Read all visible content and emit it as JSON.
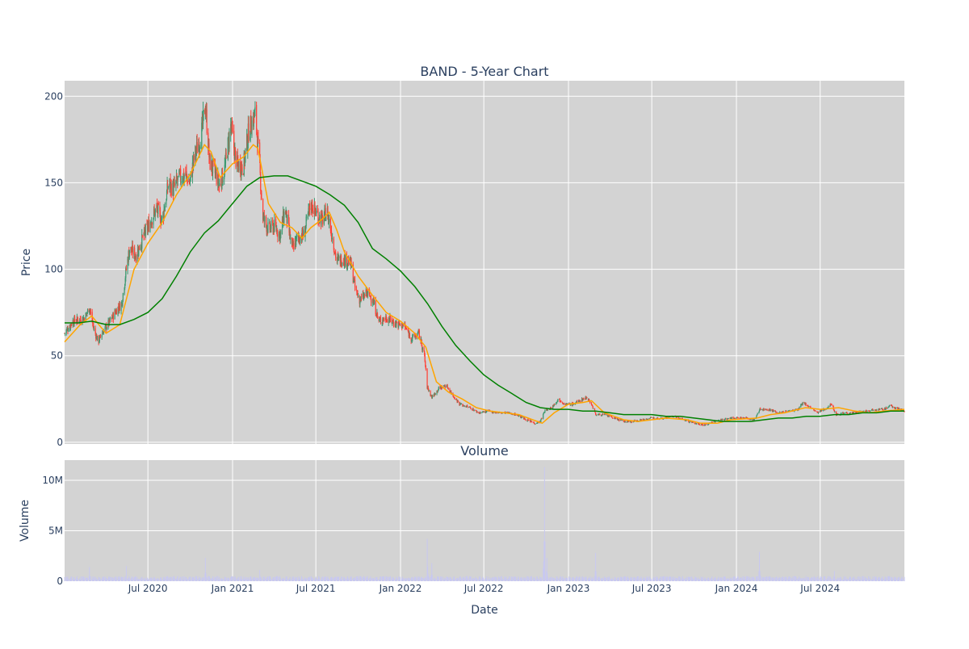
{
  "chart_data": [
    {
      "type": "candlestick",
      "title": "BAND - 5-Year Chart",
      "ylabel": "Price",
      "ylim": [
        -1,
        209
      ],
      "yticks": [
        0,
        50,
        100,
        150,
        200
      ],
      "xrange": [
        "2020-01-02",
        "2024-12-31"
      ],
      "grid": true,
      "plot_bg": "#d3d3d3",
      "grid_color": "#ffffff",
      "up_color": "#3d9970",
      "down_color": "#ff4136",
      "price_anchors": [
        [
          "2020-01-02",
          63
        ],
        [
          "2020-01-20",
          70
        ],
        [
          "2020-02-15",
          72
        ],
        [
          "2020-02-25",
          78
        ],
        [
          "2020-03-05",
          66
        ],
        [
          "2020-03-15",
          58
        ],
        [
          "2020-03-25",
          64
        ],
        [
          "2020-04-10",
          70
        ],
        [
          "2020-04-25",
          77
        ],
        [
          "2020-05-05",
          80
        ],
        [
          "2020-05-15",
          100
        ],
        [
          "2020-05-22",
          112
        ],
        [
          "2020-06-05",
          108
        ],
        [
          "2020-06-20",
          118
        ],
        [
          "2020-07-05",
          127
        ],
        [
          "2020-07-20",
          135
        ],
        [
          "2020-08-01",
          128
        ],
        [
          "2020-08-15",
          150
        ],
        [
          "2020-08-25",
          146
        ],
        [
          "2020-09-05",
          152
        ],
        [
          "2020-09-20",
          155
        ],
        [
          "2020-09-30",
          150
        ],
        [
          "2020-10-10",
          165
        ],
        [
          "2020-10-25",
          178
        ],
        [
          "2020-11-03",
          195
        ],
        [
          "2020-11-12",
          162
        ],
        [
          "2020-11-25",
          155
        ],
        [
          "2020-12-03",
          148
        ],
        [
          "2020-12-15",
          158
        ],
        [
          "2020-12-28",
          183
        ],
        [
          "2021-01-10",
          160
        ],
        [
          "2021-01-25",
          160
        ],
        [
          "2021-02-05",
          180
        ],
        [
          "2021-02-12",
          185
        ],
        [
          "2021-02-20",
          190
        ],
        [
          "2021-03-01",
          158
        ],
        [
          "2021-03-08",
          130
        ],
        [
          "2021-03-20",
          123
        ],
        [
          "2021-04-01",
          125
        ],
        [
          "2021-04-15",
          120
        ],
        [
          "2021-04-25",
          135
        ],
        [
          "2021-05-10",
          112
        ],
        [
          "2021-05-22",
          118
        ],
        [
          "2021-06-05",
          120
        ],
        [
          "2021-06-20",
          138
        ],
        [
          "2021-07-01",
          133
        ],
        [
          "2021-07-15",
          128
        ],
        [
          "2021-07-25",
          134
        ],
        [
          "2021-08-05",
          120
        ],
        [
          "2021-08-15",
          105
        ],
        [
          "2021-09-01",
          106
        ],
        [
          "2021-09-15",
          103
        ],
        [
          "2021-09-25",
          88
        ],
        [
          "2021-10-05",
          82
        ],
        [
          "2021-10-20",
          86
        ],
        [
          "2021-11-01",
          83
        ],
        [
          "2021-11-15",
          70
        ],
        [
          "2021-12-01",
          72
        ],
        [
          "2021-12-20",
          69
        ],
        [
          "2022-01-10",
          67
        ],
        [
          "2022-01-25",
          60
        ],
        [
          "2022-02-10",
          63
        ],
        [
          "2022-02-22",
          50
        ],
        [
          "2022-02-28",
          32
        ],
        [
          "2022-03-10",
          26
        ],
        [
          "2022-03-25",
          31
        ],
        [
          "2022-04-10",
          33
        ],
        [
          "2022-04-25",
          27
        ],
        [
          "2022-05-10",
          22
        ],
        [
          "2022-06-01",
          20
        ],
        [
          "2022-06-20",
          17
        ],
        [
          "2022-07-10",
          18
        ],
        [
          "2022-08-01",
          17
        ],
        [
          "2022-08-20",
          17
        ],
        [
          "2022-09-10",
          16
        ],
        [
          "2022-10-01",
          13
        ],
        [
          "2022-10-20",
          11
        ],
        [
          "2022-11-01",
          12
        ],
        [
          "2022-11-10",
          18
        ],
        [
          "2022-11-25",
          20
        ],
        [
          "2022-12-10",
          25
        ],
        [
          "2022-12-25",
          22
        ],
        [
          "2023-01-10",
          22
        ],
        [
          "2023-01-25",
          24
        ],
        [
          "2023-02-10",
          26
        ],
        [
          "2023-02-20",
          22
        ],
        [
          "2023-03-01",
          16
        ],
        [
          "2023-03-20",
          16
        ],
        [
          "2023-04-10",
          14
        ],
        [
          "2023-05-01",
          12
        ],
        [
          "2023-05-20",
          12
        ],
        [
          "2023-06-10",
          13
        ],
        [
          "2023-07-01",
          14
        ],
        [
          "2023-07-25",
          14
        ],
        [
          "2023-08-15",
          15
        ],
        [
          "2023-09-10",
          13
        ],
        [
          "2023-10-01",
          11
        ],
        [
          "2023-10-25",
          10
        ],
        [
          "2023-11-15",
          12
        ],
        [
          "2023-12-01",
          13
        ],
        [
          "2023-12-20",
          14
        ],
        [
          "2024-01-20",
          14
        ],
        [
          "2024-02-10",
          13
        ],
        [
          "2024-02-20",
          19
        ],
        [
          "2024-03-10",
          19
        ],
        [
          "2024-04-01",
          17
        ],
        [
          "2024-04-25",
          18
        ],
        [
          "2024-05-15",
          19
        ],
        [
          "2024-05-25",
          23
        ],
        [
          "2024-06-10",
          20
        ],
        [
          "2024-06-25",
          17
        ],
        [
          "2024-07-10",
          19
        ],
        [
          "2024-07-25",
          22
        ],
        [
          "2024-08-05",
          16
        ],
        [
          "2024-08-25",
          17
        ],
        [
          "2024-09-15",
          17
        ],
        [
          "2024-10-10",
          18
        ],
        [
          "2024-10-25",
          19
        ],
        [
          "2024-11-15",
          19
        ],
        [
          "2024-12-01",
          21
        ],
        [
          "2024-12-31",
          18
        ]
      ],
      "overlays": [
        {
          "kind": "moving-average",
          "color": "#ffa500",
          "points": [
            [
              "2020-01-02",
              58
            ],
            [
              "2020-02-05",
              68
            ],
            [
              "2020-03-01",
              73
            ],
            [
              "2020-04-01",
              63
            ],
            [
              "2020-05-01",
              68
            ],
            [
              "2020-06-01",
              100
            ],
            [
              "2020-07-01",
              115
            ],
            [
              "2020-08-01",
              127
            ],
            [
              "2020-09-01",
              143
            ],
            [
              "2020-10-01",
              155
            ],
            [
              "2020-11-01",
              172
            ],
            [
              "2020-11-15",
              168
            ],
            [
              "2020-12-05",
              153
            ],
            [
              "2021-01-01",
              161
            ],
            [
              "2021-01-25",
              165
            ],
            [
              "2021-02-15",
              172
            ],
            [
              "2021-02-25",
              170
            ],
            [
              "2021-03-20",
              138
            ],
            [
              "2021-04-15",
              127
            ],
            [
              "2021-05-10",
              124
            ],
            [
              "2021-06-01",
              118
            ],
            [
              "2021-06-20",
              124
            ],
            [
              "2021-07-15",
              129
            ],
            [
              "2021-07-30",
              133
            ],
            [
              "2021-08-15",
              123
            ],
            [
              "2021-09-01",
              110
            ],
            [
              "2021-10-01",
              96
            ],
            [
              "2021-11-01",
              85
            ],
            [
              "2021-12-01",
              75
            ],
            [
              "2022-01-01",
              70
            ],
            [
              "2022-02-01",
              63
            ],
            [
              "2022-02-25",
              55
            ],
            [
              "2022-03-20",
              35
            ],
            [
              "2022-04-15",
              29
            ],
            [
              "2022-05-15",
              25
            ],
            [
              "2022-06-15",
              20
            ],
            [
              "2022-07-15",
              18
            ],
            [
              "2022-08-15",
              17
            ],
            [
              "2022-09-15",
              16
            ],
            [
              "2022-10-15",
              13
            ],
            [
              "2022-11-05",
              11
            ],
            [
              "2022-12-01",
              17
            ],
            [
              "2023-01-01",
              22
            ],
            [
              "2023-02-01",
              23
            ],
            [
              "2023-02-20",
              24
            ],
            [
              "2023-03-20",
              17
            ],
            [
              "2023-05-01",
              13
            ],
            [
              "2023-06-01",
              12
            ],
            [
              "2023-07-01",
              13
            ],
            [
              "2023-08-01",
              14
            ],
            [
              "2023-09-15",
              13
            ],
            [
              "2023-10-15",
              11
            ],
            [
              "2023-11-20",
              11
            ],
            [
              "2023-12-20",
              13
            ],
            [
              "2024-02-15",
              14
            ],
            [
              "2024-03-15",
              16
            ],
            [
              "2024-04-15",
              17
            ],
            [
              "2024-05-30",
              20
            ],
            [
              "2024-07-01",
              19
            ],
            [
              "2024-08-10",
              20
            ],
            [
              "2024-09-15",
              18
            ],
            [
              "2024-10-15",
              17
            ],
            [
              "2024-11-15",
              18
            ],
            [
              "2024-12-31",
              19
            ]
          ]
        },
        {
          "kind": "moving-average",
          "color": "#008000",
          "points": [
            [
              "2020-01-02",
              69
            ],
            [
              "2020-02-01",
              69
            ],
            [
              "2020-03-01",
              70
            ],
            [
              "2020-04-01",
              68
            ],
            [
              "2020-05-01",
              68
            ],
            [
              "2020-06-01",
              71
            ],
            [
              "2020-07-01",
              75
            ],
            [
              "2020-08-01",
              83
            ],
            [
              "2020-09-01",
              96
            ],
            [
              "2020-10-01",
              110
            ],
            [
              "2020-11-01",
              121
            ],
            [
              "2020-12-01",
              128
            ],
            [
              "2021-01-01",
              138
            ],
            [
              "2021-02-01",
              148
            ],
            [
              "2021-03-01",
              153
            ],
            [
              "2021-04-01",
              154
            ],
            [
              "2021-05-01",
              154
            ],
            [
              "2021-06-01",
              151
            ],
            [
              "2021-07-01",
              148
            ],
            [
              "2021-08-01",
              143
            ],
            [
              "2021-09-01",
              137
            ],
            [
              "2021-10-01",
              127
            ],
            [
              "2021-11-01",
              112
            ],
            [
              "2021-12-01",
              106
            ],
            [
              "2022-01-01",
              99
            ],
            [
              "2022-02-01",
              90
            ],
            [
              "2022-03-01",
              80
            ],
            [
              "2022-04-01",
              67
            ],
            [
              "2022-05-01",
              56
            ],
            [
              "2022-06-01",
              47
            ],
            [
              "2022-07-01",
              39
            ],
            [
              "2022-08-01",
              33
            ],
            [
              "2022-09-01",
              28
            ],
            [
              "2022-10-01",
              23
            ],
            [
              "2022-11-01",
              20
            ],
            [
              "2022-12-01",
              19
            ],
            [
              "2023-01-01",
              19
            ],
            [
              "2023-02-01",
              18
            ],
            [
              "2023-03-01",
              18
            ],
            [
              "2023-04-01",
              17
            ],
            [
              "2023-05-01",
              16
            ],
            [
              "2023-06-01",
              16
            ],
            [
              "2023-07-01",
              16
            ],
            [
              "2023-08-01",
              15
            ],
            [
              "2023-09-01",
              15
            ],
            [
              "2023-10-01",
              14
            ],
            [
              "2023-11-01",
              13
            ],
            [
              "2023-12-01",
              12
            ],
            [
              "2024-01-01",
              12
            ],
            [
              "2024-02-01",
              12
            ],
            [
              "2024-03-01",
              13
            ],
            [
              "2024-04-01",
              14
            ],
            [
              "2024-05-01",
              14
            ],
            [
              "2024-06-01",
              15
            ],
            [
              "2024-07-01",
              15
            ],
            [
              "2024-08-01",
              16
            ],
            [
              "2024-09-01",
              16
            ],
            [
              "2024-10-01",
              17
            ],
            [
              "2024-11-01",
              17
            ],
            [
              "2024-12-01",
              18
            ],
            [
              "2024-12-31",
              18
            ]
          ]
        }
      ]
    },
    {
      "type": "bar",
      "title": "Volume",
      "xlabel": "Date",
      "ylabel": "Volume",
      "ylim": [
        0,
        12000000
      ],
      "yticks": [
        0,
        5000000,
        10000000
      ],
      "ytick_labels": [
        "0",
        "5M",
        "10M"
      ],
      "xticks": [
        "2020-07-01",
        "2021-01-01",
        "2021-07-01",
        "2022-01-01",
        "2022-07-01",
        "2023-01-01",
        "2023-07-01",
        "2024-01-01",
        "2024-07-01"
      ],
      "xtick_labels": [
        "Jul 2020",
        "Jan 2021",
        "Jul 2021",
        "Jan 2022",
        "Jul 2022",
        "Jan 2023",
        "Jul 2023",
        "Jan 2024",
        "Jul 2024"
      ],
      "grid": true,
      "plot_bg": "#d3d3d3",
      "grid_color": "#ffffff",
      "bar_color": "#c8c8f0",
      "base_volume": 300000,
      "spikes": [
        [
          "2020-02-25",
          1400000
        ],
        [
          "2020-05-15",
          1500000
        ],
        [
          "2020-11-03",
          2300000
        ],
        [
          "2021-03-01",
          1100000
        ],
        [
          "2022-02-28",
          4200000
        ],
        [
          "2022-03-10",
          1800000
        ],
        [
          "2022-11-10",
          11300000
        ],
        [
          "2022-11-15",
          2300000
        ],
        [
          "2023-03-01",
          2800000
        ],
        [
          "2024-02-20",
          2900000
        ],
        [
          "2024-05-25",
          900000
        ],
        [
          "2024-08-01",
          1000000
        ]
      ]
    }
  ]
}
